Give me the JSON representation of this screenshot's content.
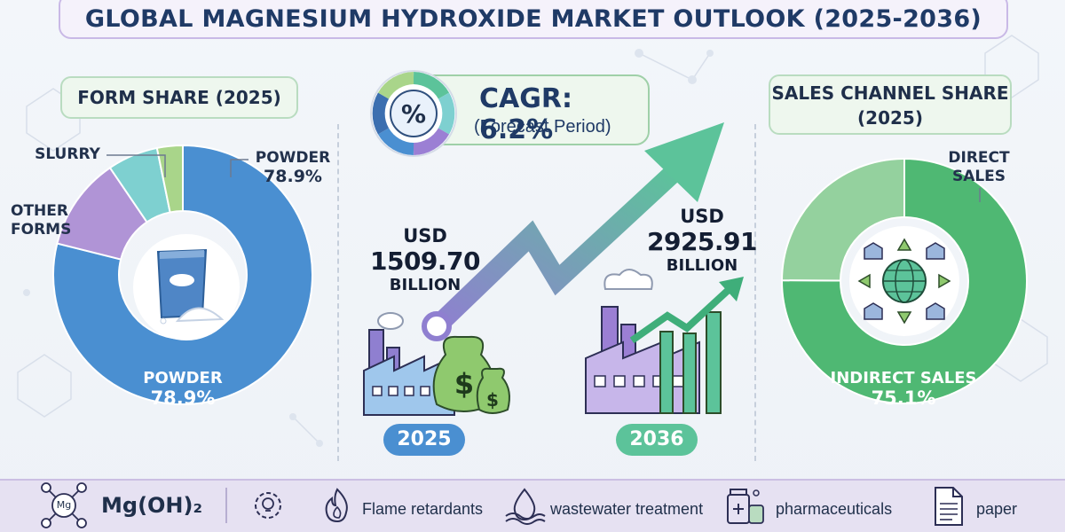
{
  "title": "GLOBAL MAGNESIUM HYDROXIDE MARKET OUTLOOK (2025-2036)",
  "form_share": {
    "header": "FORM SHARE (2025)",
    "segments": [
      {
        "name": "POWDER",
        "value": 78.9,
        "label": "78.9%",
        "color": "#4a8fd1"
      },
      {
        "name": "OTHER FORMS",
        "value": 11.6,
        "color": "#b094d6"
      },
      {
        "name": "SLURRY",
        "value": 6.3,
        "color": "#7ed0d0"
      },
      {
        "name": "",
        "value": 3.2,
        "color": "#a9d58a"
      }
    ],
    "callout_powder": "POWDER",
    "callout_powder_value": "78.9%",
    "callout_other_forms": "OTHER FORMS",
    "callout_slurry": "SLURRY",
    "inner_label": "POWDER",
    "inner_value": "78.9%",
    "center_icon": "powder-bag-icon"
  },
  "cagr": {
    "title": "CAGR: 6.2%",
    "subtitle": "(Forecast Period)",
    "icon": "percent-gauge-icon"
  },
  "market_2025": {
    "currency": "USD",
    "value": "1509.70",
    "unit": "BILLION",
    "year": "2025",
    "icon": "factory-money-bags-icon"
  },
  "market_2036": {
    "currency": "USD",
    "value": "2925.91",
    "unit": "BILLION",
    "year": "2036",
    "icon": "factory-growth-chart-icon"
  },
  "sales_channel": {
    "header_line1": "SALES CHANNEL SHARE",
    "header_line2": "(2025)",
    "segments": [
      {
        "name": "INDIRECT SALES",
        "value": 75.1,
        "label": "75.1%",
        "color": "#4fb873"
      },
      {
        "name": "DIRECT SALES",
        "value": 24.9,
        "color": "#94d19e"
      }
    ],
    "callout_direct_line1": "DIRECT",
    "callout_direct_line2": "SALES",
    "inner_label": "INDIRECT SALES",
    "inner_value": "75.1%",
    "center_icon": "globe-warehouses-icon"
  },
  "bottom_bar": {
    "formula_icon": "molecule-icon",
    "formula": "Mg(OH)₂",
    "molecule_label": "Mg",
    "items": [
      {
        "icon": "gear-bulb-icon",
        "label": ""
      },
      {
        "icon": "flame-icon",
        "label": "Flame retardants"
      },
      {
        "icon": "water-drop-icon",
        "label": "wastewater treatment"
      },
      {
        "icon": "pharma-bottle-icon",
        "label": "pharmaceuticals"
      },
      {
        "icon": "document-icon",
        "label": "paper"
      }
    ]
  },
  "colors": {
    "title_text": "#1f3a66",
    "powder_blue": "#4a8fd1",
    "sales_green": "#4fb873",
    "arrow_start": "#8f7fd0",
    "arrow_end": "#5cc39a"
  }
}
